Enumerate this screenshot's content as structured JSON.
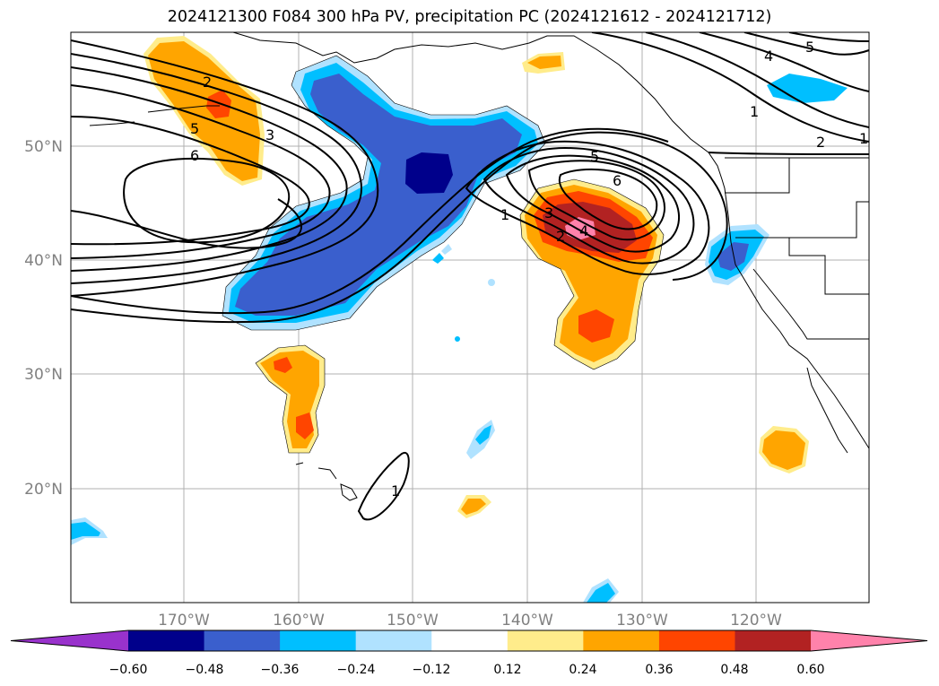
{
  "title": "2024121300 F084 300 hPa PV, precipitation PC (2024121612 - 2024121712)",
  "map": {
    "lon_ticks": [
      "170°W",
      "160°W",
      "150°W",
      "140°W",
      "130°W",
      "120°W"
    ],
    "lat_ticks": [
      "50°N",
      "40°N",
      "30°N",
      "20°N"
    ],
    "contour_labels": [
      "2",
      "5",
      "6",
      "3",
      "1",
      "5",
      "6",
      "3",
      "2",
      "4",
      "1",
      "4",
      "5",
      "1",
      "2",
      "1"
    ]
  },
  "colorbar": {
    "levels": [
      "−0.60",
      "−0.48",
      "−0.36",
      "−0.24",
      "−0.12",
      "0.12",
      "0.24",
      "0.36",
      "0.48",
      "0.60"
    ],
    "colors": [
      "#9932cc",
      "#00008b",
      "#3a5fcd",
      "#00bfff",
      "#b0e2ff",
      "#ffffff",
      "#ffec8b",
      "#ffa500",
      "#ff4500",
      "#b22222",
      "#ff82ab"
    ]
  }
}
